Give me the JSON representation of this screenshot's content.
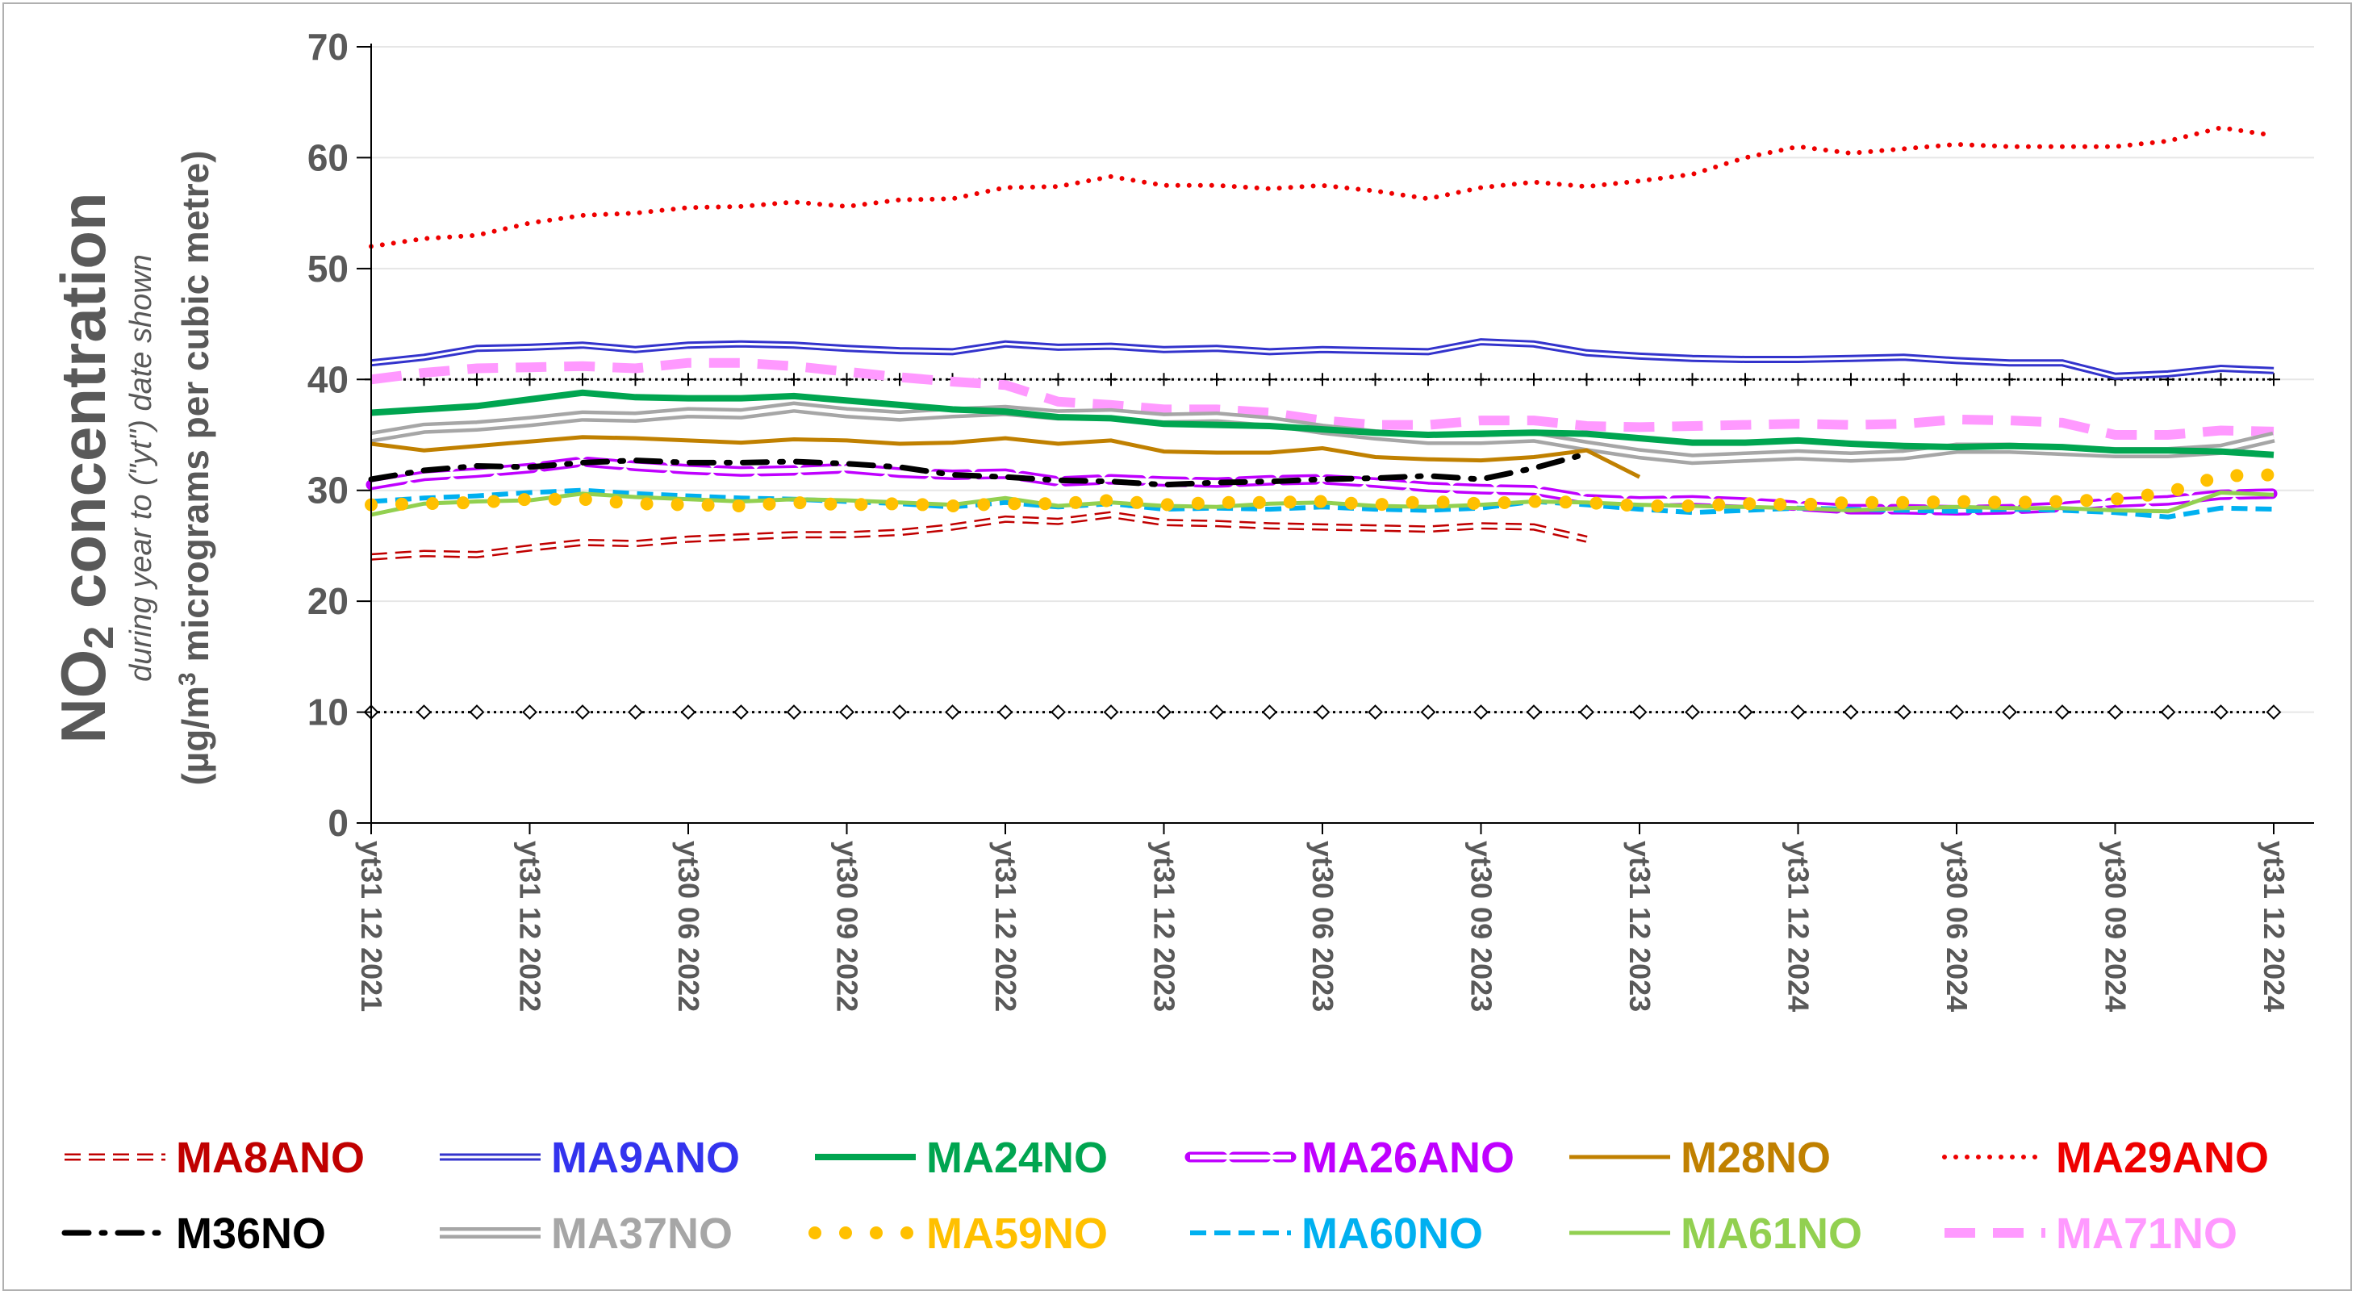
{
  "chart_data": {
    "type": "line",
    "ylabel": {
      "main": "NO",
      "sub2": "2",
      "main_rest": " concentration",
      "line2": "during year to (\"yt\") date shown",
      "line3_pre": "(µg/m",
      "line3_sup": "3",
      "line3_post": " micrograms per cubic metre)"
    },
    "ylim": [
      0,
      70
    ],
    "yticks": [
      "0",
      "10",
      "20",
      "30",
      "40",
      "50",
      "60",
      "70"
    ],
    "n_points": 37,
    "x_tick_labels": [
      "yt31 12 2021",
      "yt31 12 2022",
      "yt30 06 2022",
      "yt30 09 2022",
      "yt31 12 2022",
      "yt31 12 2023",
      "yt30 06 2023",
      "yt30 09 2023",
      "yt31 12 2023",
      "yt31 12 2024",
      "yt30 06 2024",
      "yt30 09 2024",
      "yt31 12 2024"
    ],
    "x_tick_index": [
      0,
      3,
      6,
      9,
      12,
      15,
      18,
      21,
      24,
      27,
      30,
      33,
      36
    ],
    "reference_lines": [
      {
        "value": 40,
        "color": "#000000",
        "marker": "plus"
      },
      {
        "value": 10,
        "color": "#000000",
        "marker": "diamond"
      }
    ],
    "series": [
      {
        "name": "MA8ANO",
        "color": "#c00000",
        "style": "outline-dash",
        "values": [
          24.0,
          24.3,
          24.2,
          24.8,
          25.3,
          25.2,
          25.6,
          25.8,
          26.0,
          26.0,
          26.2,
          26.7,
          27.4,
          27.2,
          27.8,
          27.1,
          27.0,
          26.8,
          26.7,
          26.6,
          26.5,
          26.8,
          26.7,
          25.6
        ]
      },
      {
        "name": "MA9ANO",
        "color": "#3333cc",
        "style": "double",
        "values": [
          41.5,
          42.0,
          42.8,
          42.9,
          43.1,
          42.7,
          43.1,
          43.2,
          43.1,
          42.8,
          42.6,
          42.5,
          43.2,
          42.9,
          43.0,
          42.7,
          42.8,
          42.5,
          42.7,
          42.6,
          42.5,
          43.4,
          43.2,
          42.4,
          42.1,
          41.9,
          41.8,
          41.8,
          41.9,
          42.0,
          41.7,
          41.5,
          41.5,
          40.3,
          40.5,
          41.0,
          40.8
        ]
      },
      {
        "name": "MA24NO",
        "color": "#00a550",
        "style": "solid-thick",
        "values": [
          37.0,
          37.3,
          37.6,
          38.2,
          38.8,
          38.4,
          38.3,
          38.3,
          38.5,
          38.1,
          37.7,
          37.3,
          37.1,
          36.6,
          36.5,
          36.0,
          35.9,
          35.8,
          35.5,
          35.2,
          35.0,
          35.1,
          35.2,
          35.1,
          34.7,
          34.3,
          34.3,
          34.5,
          34.2,
          34.0,
          33.9,
          34.0,
          33.9,
          33.6,
          33.6,
          33.5,
          33.2
        ]
      },
      {
        "name": "MA26ANO",
        "color": "#bf00ff",
        "style": "outline-dash-wide",
        "values": [
          30.5,
          31.3,
          31.6,
          32.0,
          32.6,
          32.2,
          31.9,
          31.7,
          31.8,
          32.0,
          31.6,
          31.4,
          31.5,
          30.8,
          31.0,
          30.8,
          30.7,
          30.9,
          31.0,
          30.7,
          30.3,
          30.1,
          30.0,
          29.2,
          29.0,
          29.1,
          28.9,
          28.6,
          28.3,
          28.3,
          28.2,
          28.3,
          28.5,
          28.9,
          29.1,
          29.6,
          29.7
        ]
      },
      {
        "name": "M28NO",
        "color": "#c08000",
        "style": "solid",
        "values": [
          34.2,
          33.6,
          34.0,
          34.4,
          34.8,
          34.7,
          34.5,
          34.3,
          34.6,
          34.5,
          34.2,
          34.3,
          34.7,
          34.2,
          34.5,
          33.5,
          33.4,
          33.4,
          33.8,
          33.0,
          32.8,
          32.7,
          33.0,
          33.6,
          31.2
        ]
      },
      {
        "name": "MA29ANO",
        "color": "#ee0000",
        "style": "dotted",
        "values": [
          52.0,
          52.7,
          53.0,
          54.1,
          54.8,
          55.0,
          55.5,
          55.6,
          56.0,
          55.6,
          56.2,
          56.3,
          57.3,
          57.4,
          58.3,
          57.5,
          57.5,
          57.2,
          57.5,
          57.0,
          56.3,
          57.3,
          57.8,
          57.4,
          57.9,
          58.5,
          60.0,
          61.0,
          60.4,
          60.8,
          61.2,
          61.0,
          61.0,
          61.0,
          61.5,
          62.7,
          62.0
        ]
      },
      {
        "name": "M36NO",
        "color": "#000000",
        "style": "dash-dot",
        "values": [
          31.0,
          31.8,
          32.2,
          32.1,
          32.5,
          32.7,
          32.5,
          32.5,
          32.6,
          32.4,
          32.1,
          31.4,
          31.2,
          30.9,
          30.8,
          30.5,
          30.7,
          30.8,
          31.0,
          31.1,
          31.3,
          31.0,
          32.0,
          33.3
        ]
      },
      {
        "name": "MA37NO",
        "color": "#a6a6a6",
        "style": "double-gray",
        "values": [
          34.8,
          35.6,
          35.8,
          36.2,
          36.7,
          36.6,
          37.0,
          36.9,
          37.5,
          37.0,
          36.7,
          37.0,
          37.2,
          36.8,
          36.9,
          36.5,
          36.6,
          36.2,
          35.5,
          35.0,
          34.6,
          34.6,
          34.8,
          34.0,
          33.3,
          32.8,
          33.0,
          33.2,
          33.0,
          33.2,
          33.8,
          33.8,
          33.6,
          33.4,
          33.4,
          33.7,
          34.8
        ]
      },
      {
        "name": "MA59NO",
        "color": "#ffc000",
        "style": "round-dots",
        "values": [
          28.7,
          28.8,
          28.9,
          29.2,
          29.2,
          28.8,
          28.7,
          28.6,
          28.9,
          28.7,
          28.8,
          28.6,
          28.8,
          28.8,
          29.1,
          28.7,
          28.9,
          28.9,
          29.0,
          28.7,
          29.0,
          28.8,
          29.0,
          28.9,
          28.6,
          28.6,
          28.8,
          28.7,
          28.9,
          28.9,
          29.0,
          28.9,
          29.0,
          29.2,
          29.8,
          31.3,
          31.4
        ]
      },
      {
        "name": "MA60NO",
        "color": "#00b0f0",
        "style": "dashed",
        "values": [
          29.0,
          29.3,
          29.5,
          29.8,
          30.0,
          29.7,
          29.5,
          29.3,
          29.2,
          29.0,
          28.8,
          28.5,
          28.9,
          28.5,
          28.8,
          28.3,
          28.4,
          28.3,
          28.5,
          28.3,
          28.2,
          28.4,
          29.0,
          28.7,
          28.3,
          28.0,
          28.2,
          28.4,
          28.3,
          28.2,
          28.1,
          28.3,
          28.2,
          28.0,
          27.6,
          28.4,
          28.3
        ]
      },
      {
        "name": "MA61NO",
        "color": "#92d050",
        "style": "solid",
        "values": [
          27.8,
          28.8,
          29.0,
          29.1,
          29.7,
          29.4,
          29.2,
          29.0,
          29.2,
          29.1,
          28.9,
          28.7,
          29.3,
          28.6,
          28.9,
          28.6,
          28.5,
          28.8,
          28.9,
          28.6,
          28.5,
          28.7,
          29.0,
          28.9,
          28.7,
          28.6,
          28.5,
          28.4,
          28.2,
          28.4,
          28.5,
          28.4,
          28.4,
          28.2,
          28.1,
          29.8,
          29.6
        ]
      },
      {
        "name": "MA71NO",
        "color": "#ff99ff",
        "style": "dashed-thick",
        "values": [
          40.0,
          40.6,
          41.0,
          41.1,
          41.2,
          41.0,
          41.5,
          41.5,
          41.2,
          40.7,
          40.2,
          39.8,
          39.5,
          38.0,
          37.7,
          37.3,
          37.3,
          37.0,
          36.3,
          35.9,
          35.9,
          36.3,
          36.3,
          35.8,
          35.7,
          35.8,
          35.9,
          36.0,
          35.9,
          36.0,
          36.4,
          36.3,
          36.1,
          35.0,
          35.0,
          35.4,
          35.3
        ]
      }
    ],
    "legend": [
      [
        {
          "label": "MA8ANO",
          "text_color": "#c00000"
        },
        {
          "label": "MA9ANO",
          "text_color": "#3333ee"
        },
        {
          "label": "MA24NO",
          "text_color": "#00a550"
        },
        {
          "label": "MA26ANO",
          "text_color": "#bf00ff"
        },
        {
          "label": "M28NO",
          "text_color": "#c08000"
        },
        {
          "label": "MA29ANO",
          "text_color": "#ee0000"
        }
      ],
      [
        {
          "label": "M36NO",
          "text_color": "#000000"
        },
        {
          "label": "MA37NO",
          "text_color": "#a6a6a6"
        },
        {
          "label": "MA59NO",
          "text_color": "#ffc000"
        },
        {
          "label": "MA60NO",
          "text_color": "#00b0f0"
        },
        {
          "label": "MA61NO",
          "text_color": "#92d050"
        },
        {
          "label": "MA71NO",
          "text_color": "#ff99ff"
        }
      ]
    ],
    "legend_placement": "bottom",
    "grid": "horizontal"
  }
}
